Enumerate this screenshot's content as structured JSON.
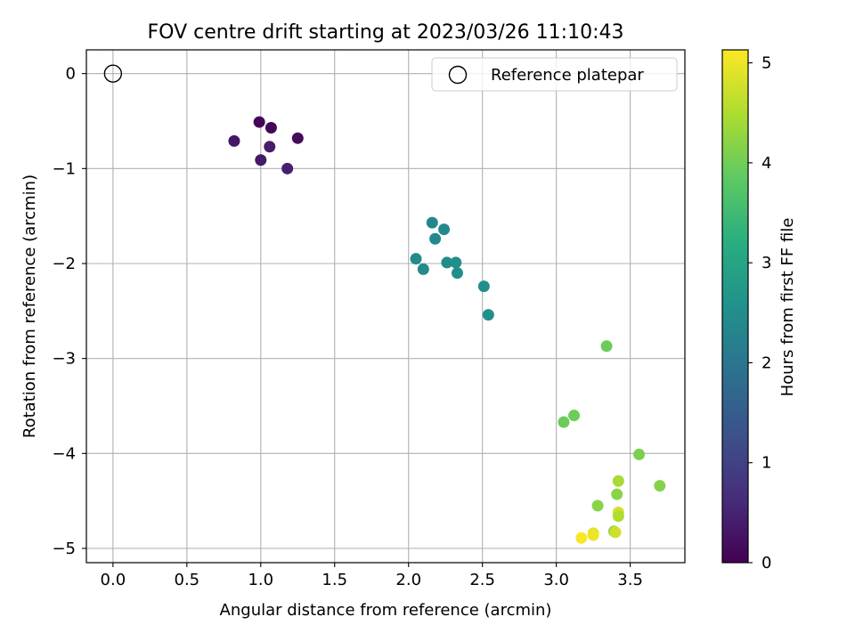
{
  "chart_data": {
    "type": "scatter",
    "title": "FOV centre drift starting at 2023/03/26 11:10:43",
    "xlabel": "Angular distance from reference (arcmin)",
    "ylabel": "Rotation from reference (arcmin)",
    "xlim": [
      -0.18,
      3.87
    ],
    "ylim": [
      -5.15,
      0.25
    ],
    "xticks": [
      0.0,
      0.5,
      1.0,
      1.5,
      2.0,
      2.5,
      3.0,
      3.5
    ],
    "xtick_labels": [
      "0.0",
      "0.5",
      "1.0",
      "1.5",
      "2.0",
      "2.5",
      "3.0",
      "3.5"
    ],
    "yticks": [
      0,
      -1,
      -2,
      -3,
      -4,
      -5
    ],
    "ytick_labels": [
      "0",
      "−1",
      "−2",
      "−3",
      "−4",
      "−5"
    ],
    "grid": true,
    "legend": {
      "placement": "top-right",
      "entries": [
        "Reference platepar"
      ]
    },
    "reference_point": {
      "x": 0.0,
      "y": 0.0
    },
    "colorbar": {
      "label": "Hours from first FF file",
      "range": [
        0,
        5.13
      ],
      "ticks": [
        0,
        1,
        2,
        3,
        4,
        5
      ],
      "tick_labels": [
        "0",
        "1",
        "2",
        "3",
        "4",
        "5"
      ],
      "colormap": "viridis"
    },
    "points": [
      {
        "x": 0.99,
        "y": -0.51,
        "hours": 0.05
      },
      {
        "x": 1.07,
        "y": -0.57,
        "hours": 0.1
      },
      {
        "x": 1.25,
        "y": -0.68,
        "hours": 0.15
      },
      {
        "x": 0.82,
        "y": -0.71,
        "hours": 0.3
      },
      {
        "x": 1.06,
        "y": -0.77,
        "hours": 0.4
      },
      {
        "x": 1.0,
        "y": -0.91,
        "hours": 0.35
      },
      {
        "x": 1.18,
        "y": -1.0,
        "hours": 0.45
      },
      {
        "x": 2.16,
        "y": -1.57,
        "hours": 2.35
      },
      {
        "x": 2.24,
        "y": -1.64,
        "hours": 2.4
      },
      {
        "x": 2.18,
        "y": -1.74,
        "hours": 2.4
      },
      {
        "x": 2.05,
        "y": -1.95,
        "hours": 2.45
      },
      {
        "x": 2.26,
        "y": -1.99,
        "hours": 2.45
      },
      {
        "x": 2.32,
        "y": -1.99,
        "hours": 2.5
      },
      {
        "x": 2.1,
        "y": -2.06,
        "hours": 2.45
      },
      {
        "x": 2.33,
        "y": -2.1,
        "hours": 2.5
      },
      {
        "x": 2.51,
        "y": -2.24,
        "hours": 2.55
      },
      {
        "x": 2.54,
        "y": -2.54,
        "hours": 2.55
      },
      {
        "x": 3.34,
        "y": -2.87,
        "hours": 3.95
      },
      {
        "x": 3.12,
        "y": -3.6,
        "hours": 3.95
      },
      {
        "x": 3.05,
        "y": -3.67,
        "hours": 3.95
      },
      {
        "x": 3.56,
        "y": -4.01,
        "hours": 4.1
      },
      {
        "x": 3.7,
        "y": -4.34,
        "hours": 4.15
      },
      {
        "x": 3.42,
        "y": -4.29,
        "hours": 4.45
      },
      {
        "x": 3.41,
        "y": -4.43,
        "hours": 4.2
      },
      {
        "x": 3.28,
        "y": -4.55,
        "hours": 4.2
      },
      {
        "x": 3.42,
        "y": -4.62,
        "hours": 4.8
      },
      {
        "x": 3.42,
        "y": -4.66,
        "hours": 4.5
      },
      {
        "x": 3.39,
        "y": -4.82,
        "hours": 4.3
      },
      {
        "x": 3.4,
        "y": -4.83,
        "hours": 4.75
      },
      {
        "x": 3.25,
        "y": -4.84,
        "hours": 4.9
      },
      {
        "x": 3.25,
        "y": -4.86,
        "hours": 5.0
      },
      {
        "x": 3.17,
        "y": -4.89,
        "hours": 5.1
      }
    ]
  }
}
